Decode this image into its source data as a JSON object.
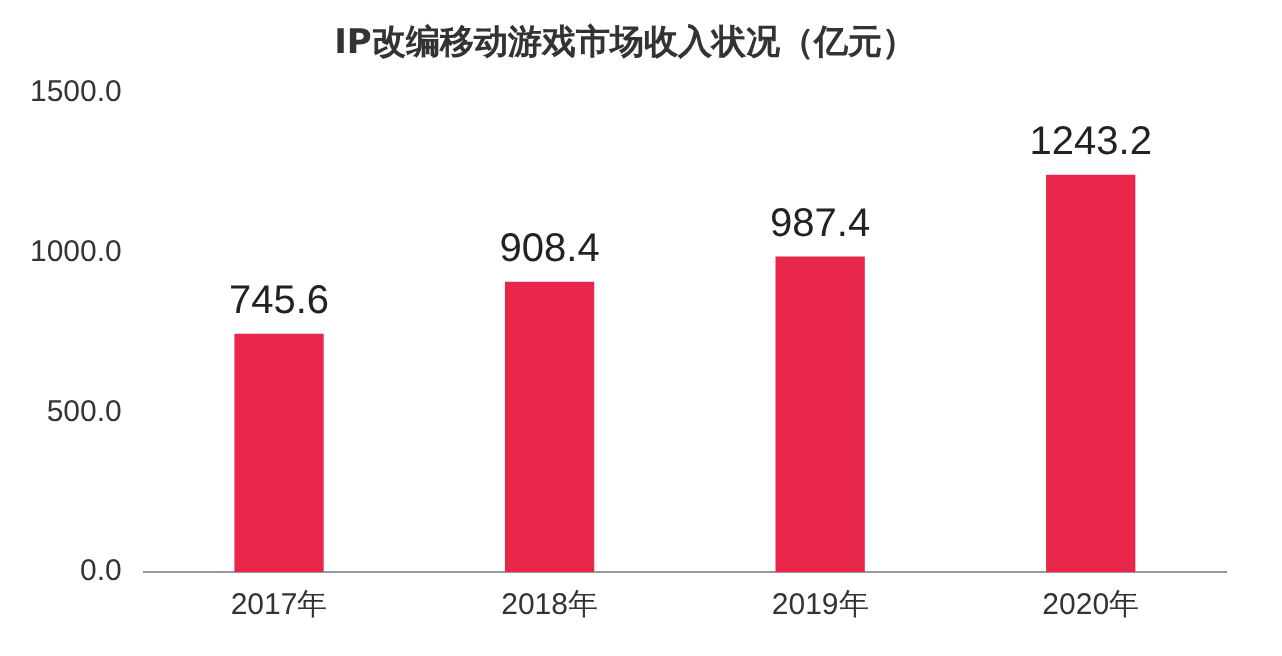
{
  "chart_data": {
    "type": "bar",
    "title": "IP改编移动游戏市场收入状况（亿元）",
    "categories": [
      "2017年",
      "2018年",
      "2019年",
      "2020年"
    ],
    "values": [
      745.6,
      908.4,
      987.4,
      1243.2
    ],
    "color": "#e8264a",
    "ylim": [
      0,
      1500
    ],
    "yticks": [
      {
        "value": 0,
        "label": "0.0"
      },
      {
        "value": 500,
        "label": "500.0"
      },
      {
        "value": 1000,
        "label": "1000.0"
      },
      {
        "value": 1500,
        "label": "1500.0"
      }
    ],
    "data_labels": true,
    "grid": false,
    "legend": false
  }
}
